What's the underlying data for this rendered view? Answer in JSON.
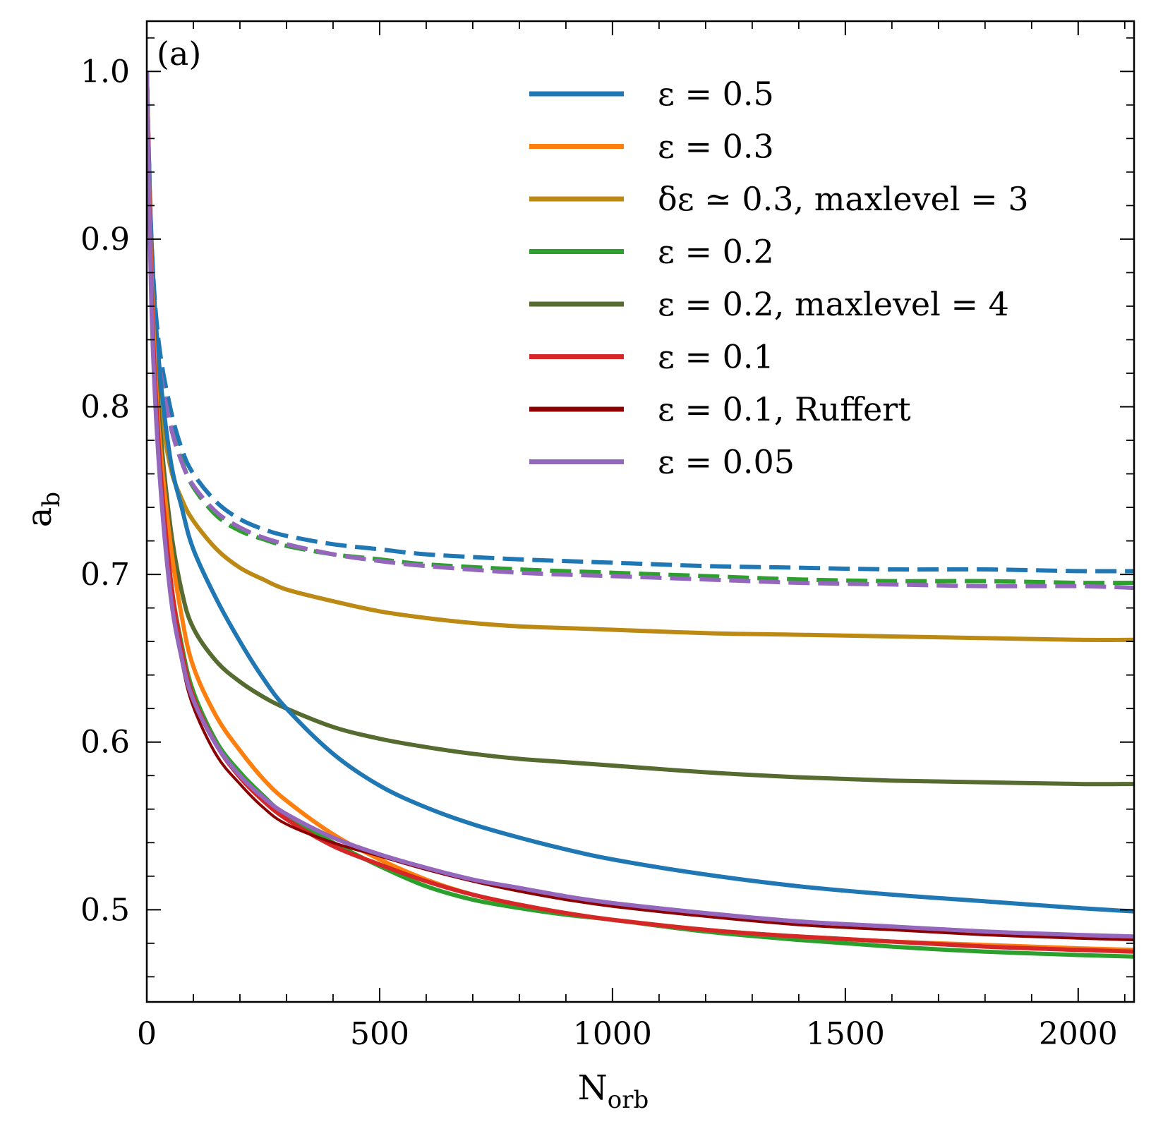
{
  "chart_data": {
    "type": "line",
    "panel_label": "(a)",
    "xlabel": {
      "main": "N",
      "sub": "orb"
    },
    "ylabel": {
      "main": "a",
      "sub": "b"
    },
    "xlim": [
      0,
      2120
    ],
    "ylim": [
      0.445,
      1.03
    ],
    "x_ticks": [
      0,
      500,
      1000,
      1500,
      2000
    ],
    "x_tick_labels": [
      "0",
      "500",
      "1000",
      "1500",
      "2000"
    ],
    "x_minor_step": 100,
    "y_ticks": [
      0.5,
      0.6,
      0.7,
      0.8,
      0.9,
      1.0
    ],
    "y_tick_labels": [
      "0.5",
      "0.6",
      "0.7",
      "0.8",
      "0.9",
      "1.0"
    ],
    "y_minor_step": 0.02,
    "legend_position": "upper-right",
    "series": [
      {
        "name": "ε = 0.5",
        "color": "#1f77b4",
        "style": "solid",
        "x": [
          0,
          10,
          25,
          50,
          75,
          100,
          150,
          200,
          250,
          300,
          400,
          500,
          600,
          700,
          800,
          900,
          1000,
          1200,
          1400,
          1600,
          1800,
          2000,
          2120
        ],
        "y": [
          1.0,
          0.9,
          0.83,
          0.77,
          0.74,
          0.715,
          0.685,
          0.66,
          0.638,
          0.62,
          0.593,
          0.574,
          0.561,
          0.551,
          0.543,
          0.536,
          0.53,
          0.521,
          0.514,
          0.509,
          0.505,
          0.501,
          0.499
        ]
      },
      {
        "name": "ε = 0.3",
        "color": "#ff7f0e",
        "style": "solid",
        "x": [
          0,
          10,
          25,
          50,
          75,
          100,
          150,
          200,
          250,
          300,
          400,
          500,
          600,
          700,
          800,
          900,
          1000,
          1200,
          1400,
          1600,
          1800,
          2000,
          2120
        ],
        "y": [
          1.0,
          0.88,
          0.79,
          0.72,
          0.675,
          0.645,
          0.615,
          0.595,
          0.578,
          0.565,
          0.545,
          0.53,
          0.518,
          0.509,
          0.503,
          0.498,
          0.494,
          0.488,
          0.484,
          0.481,
          0.479,
          0.477,
          0.476
        ]
      },
      {
        "name": "δε ≃ 0.3,  maxlevel = 3",
        "color": "#bc8a14",
        "style": "solid",
        "x": [
          0,
          10,
          25,
          50,
          75,
          100,
          150,
          200,
          250,
          300,
          400,
          500,
          600,
          700,
          800,
          900,
          1000,
          1200,
          1400,
          1600,
          1800,
          2000,
          2120
        ],
        "y": [
          1.0,
          0.87,
          0.81,
          0.765,
          0.745,
          0.732,
          0.715,
          0.704,
          0.697,
          0.691,
          0.684,
          0.678,
          0.674,
          0.671,
          0.669,
          0.668,
          0.667,
          0.665,
          0.664,
          0.663,
          0.662,
          0.661,
          0.661
        ]
      },
      {
        "name": "ε = 0.2",
        "color": "#2ca02c",
        "style": "solid",
        "x": [
          0,
          10,
          25,
          50,
          75,
          100,
          150,
          200,
          250,
          300,
          400,
          500,
          600,
          700,
          800,
          900,
          1000,
          1200,
          1400,
          1600,
          1800,
          2000,
          2120
        ],
        "y": [
          1.0,
          0.87,
          0.78,
          0.7,
          0.658,
          0.63,
          0.6,
          0.582,
          0.568,
          0.556,
          0.54,
          0.526,
          0.514,
          0.506,
          0.501,
          0.497,
          0.494,
          0.487,
          0.482,
          0.478,
          0.475,
          0.473,
          0.472
        ]
      },
      {
        "name": "ε = 0.2,  maxlevel = 4",
        "color": "#556b2f",
        "style": "solid",
        "x": [
          0,
          10,
          25,
          50,
          75,
          100,
          150,
          200,
          250,
          300,
          400,
          500,
          600,
          700,
          800,
          900,
          1000,
          1200,
          1400,
          1600,
          1800,
          2000,
          2120
        ],
        "y": [
          1.0,
          0.88,
          0.8,
          0.73,
          0.69,
          0.668,
          0.648,
          0.636,
          0.627,
          0.62,
          0.609,
          0.602,
          0.597,
          0.593,
          0.59,
          0.588,
          0.586,
          0.582,
          0.579,
          0.577,
          0.576,
          0.575,
          0.575
        ]
      },
      {
        "name": "ε = 0.1",
        "color": "#d62728",
        "style": "solid",
        "x": [
          0,
          10,
          25,
          50,
          75,
          100,
          150,
          200,
          250,
          300,
          400,
          500,
          600,
          700,
          800,
          900,
          1000,
          1200,
          1400,
          1600,
          1800,
          2000,
          2120
        ],
        "y": [
          1.0,
          0.87,
          0.78,
          0.7,
          0.655,
          0.627,
          0.598,
          0.579,
          0.565,
          0.554,
          0.538,
          0.527,
          0.517,
          0.509,
          0.503,
          0.498,
          0.494,
          0.488,
          0.484,
          0.481,
          0.478,
          0.476,
          0.475
        ]
      },
      {
        "name": "ε = 0.1,  Ruffert",
        "color": "#8b0000",
        "style": "solid",
        "x": [
          0,
          10,
          25,
          50,
          75,
          100,
          150,
          200,
          250,
          300,
          400,
          500,
          600,
          700,
          800,
          900,
          1000,
          1200,
          1400,
          1600,
          1800,
          2000,
          2120
        ],
        "y": [
          1.0,
          0.86,
          0.77,
          0.69,
          0.648,
          0.621,
          0.592,
          0.575,
          0.561,
          0.551,
          0.54,
          0.532,
          0.524,
          0.517,
          0.511,
          0.506,
          0.502,
          0.496,
          0.491,
          0.488,
          0.485,
          0.483,
          0.482
        ]
      },
      {
        "name": "ε = 0.05",
        "color": "#9467bd",
        "style": "solid",
        "x": [
          0,
          10,
          25,
          50,
          75,
          100,
          150,
          200,
          250,
          300,
          400,
          500,
          600,
          700,
          800,
          900,
          1000,
          1200,
          1400,
          1600,
          1800,
          2000,
          2120
        ],
        "y": [
          1.0,
          0.86,
          0.77,
          0.69,
          0.65,
          0.625,
          0.598,
          0.58,
          0.567,
          0.557,
          0.543,
          0.533,
          0.525,
          0.518,
          0.513,
          0.508,
          0.504,
          0.498,
          0.493,
          0.49,
          0.487,
          0.485,
          0.484
        ]
      },
      {
        "name": "ε = 0.5 (dashed)",
        "color": "#1f77b4",
        "style": "dashed",
        "in_legend": false,
        "x": [
          0,
          10,
          25,
          50,
          75,
          100,
          150,
          200,
          250,
          300,
          400,
          500,
          600,
          800,
          1000,
          1200,
          1400,
          1600,
          1800,
          2000,
          2120
        ],
        "y": [
          1.0,
          0.9,
          0.84,
          0.8,
          0.775,
          0.76,
          0.743,
          0.733,
          0.727,
          0.723,
          0.718,
          0.715,
          0.712,
          0.709,
          0.707,
          0.705,
          0.704,
          0.703,
          0.703,
          0.702,
          0.702
        ]
      },
      {
        "name": "ε = 0.2 (dashed)",
        "color": "#2ca02c",
        "style": "dashed",
        "in_legend": false,
        "x": [
          0,
          10,
          25,
          50,
          75,
          100,
          150,
          200,
          250,
          300,
          400,
          500,
          600,
          800,
          1000,
          1200,
          1400,
          1600,
          1800,
          2000,
          2120
        ],
        "y": [
          1.0,
          0.89,
          0.83,
          0.79,
          0.768,
          0.752,
          0.735,
          0.726,
          0.721,
          0.717,
          0.712,
          0.709,
          0.706,
          0.703,
          0.701,
          0.699,
          0.697,
          0.696,
          0.696,
          0.695,
          0.695
        ]
      },
      {
        "name": "ε = 0.05 (dashed)",
        "color": "#9467bd",
        "style": "dashed",
        "in_legend": false,
        "x": [
          0,
          10,
          25,
          50,
          75,
          100,
          150,
          200,
          250,
          300,
          400,
          500,
          600,
          800,
          1000,
          1200,
          1400,
          1600,
          1800,
          2000,
          2120
        ],
        "y": [
          1.0,
          0.89,
          0.83,
          0.79,
          0.767,
          0.753,
          0.737,
          0.728,
          0.722,
          0.718,
          0.712,
          0.708,
          0.705,
          0.701,
          0.699,
          0.697,
          0.695,
          0.694,
          0.693,
          0.693,
          0.692
        ]
      }
    ]
  }
}
